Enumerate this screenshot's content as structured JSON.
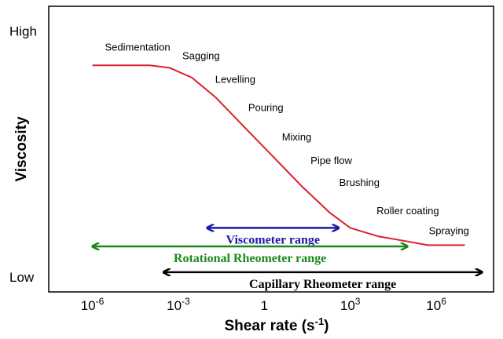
{
  "chart_data": {
    "type": "line",
    "title": "",
    "xlabel": "Shear rate (s-1)",
    "xlabel_parts": {
      "base": "Shear rate (s",
      "sup": "-1",
      "tail": ")"
    },
    "ylabel": "Viscosity",
    "x_scale": "log",
    "x_ticks": [
      {
        "value": 1e-06,
        "base": "10",
        "exp": "-6"
      },
      {
        "value": 0.001,
        "base": "10",
        "exp": "-3"
      },
      {
        "value": 1,
        "base": "1",
        "exp": ""
      },
      {
        "value": 1000.0,
        "base": "10",
        "exp": "3"
      },
      {
        "value": 1000000.0,
        "base": "10",
        "exp": "6"
      }
    ],
    "y_ticks": [
      {
        "value": 1.0,
        "label": "High"
      },
      {
        "value": 0.0,
        "label": "Low"
      }
    ],
    "xlim": [
      3e-08,
      100000000.0
    ],
    "ylim": [
      -0.06,
      1.1
    ],
    "grid": false,
    "series": [
      {
        "color": "#d9202e",
        "x": [
          1e-06,
          0.0001,
          0.0005,
          0.003,
          0.02,
          0.2,
          2,
          20,
          200,
          1000.0,
          10000.0,
          100000.0,
          500000.0,
          10000000.0
        ],
        "values": [
          0.86,
          0.86,
          0.85,
          0.81,
          0.73,
          0.61,
          0.49,
          0.37,
          0.26,
          0.2,
          0.165,
          0.145,
          0.13,
          0.13
        ]
      }
    ],
    "annotations": [
      {
        "text": "Sedimentation",
        "x": 1e-06,
        "y": 0.92
      },
      {
        "text": "Sagging",
        "x": 0.0005,
        "y": 0.885
      },
      {
        "text": "Levelling",
        "x": 0.007,
        "y": 0.79
      },
      {
        "text": "Pouring",
        "x": 0.1,
        "y": 0.675
      },
      {
        "text": "Mixing",
        "x": 1.5,
        "y": 0.555
      },
      {
        "text": "Pipe flow",
        "x": 15,
        "y": 0.46
      },
      {
        "text": "Brushing",
        "x": 150,
        "y": 0.37
      },
      {
        "text": "Roller coating",
        "x": 3000,
        "y": 0.255
      },
      {
        "text": "Spraying",
        "x": 200000.0,
        "y": 0.175
      }
    ],
    "ranges": [
      {
        "label": "Viscometer range",
        "from": 0.01,
        "to": 400,
        "y": 0.2,
        "color": "#1a1aaa"
      },
      {
        "label": "Rotational Rheometer range",
        "from": 1e-06,
        "to": 100000.0,
        "y": 0.125,
        "color": "#1a8a1a"
      },
      {
        "label": "Capillary Rheometer range",
        "from": 0.0003,
        "to": 40000000.0,
        "y": 0.02,
        "color": "#000000"
      }
    ]
  }
}
